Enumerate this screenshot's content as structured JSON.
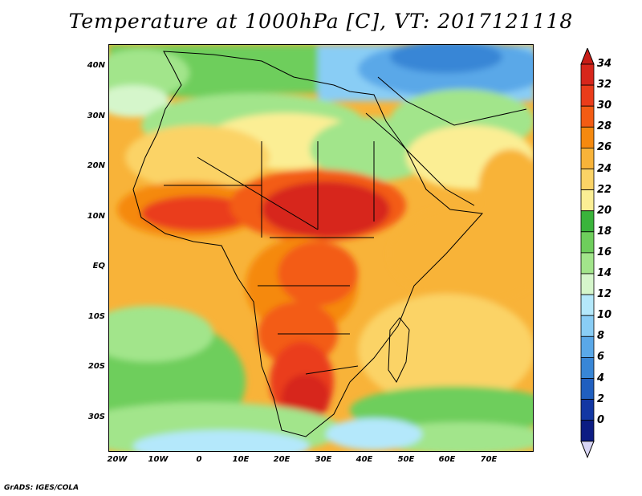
{
  "title": "Temperature at 1000hPa [C], VT: 2017121118",
  "credit": "GrADS: IGES/COLA",
  "lat_labels": [
    "40N",
    "30N",
    "20N",
    "10N",
    "EQ",
    "10S",
    "20S",
    "30S"
  ],
  "lon_labels": [
    "20W",
    "10W",
    "0",
    "10E",
    "20E",
    "30E",
    "40E",
    "50E",
    "60E",
    "70E"
  ],
  "colorbar": {
    "labels": [
      "34",
      "32",
      "30",
      "28",
      "26",
      "24",
      "22",
      "20",
      "18",
      "16",
      "14",
      "12",
      "10",
      "8",
      "6",
      "4",
      "2",
      "0"
    ],
    "colors": [
      "#d7261b",
      "#ea3c1a",
      "#f35c14",
      "#f5890f",
      "#f8b339",
      "#fbd366",
      "#fbee94",
      "#3ab43b",
      "#6ece5c",
      "#a2e58b",
      "#d5f6cb",
      "#b4e8fb",
      "#89cdf5",
      "#5aa8e8",
      "#3886d6",
      "#205fbf",
      "#1237a3",
      "#0c1c83"
    ],
    "top_cap": "#c81d17",
    "bottom_cap": "#d8d5f5"
  }
}
